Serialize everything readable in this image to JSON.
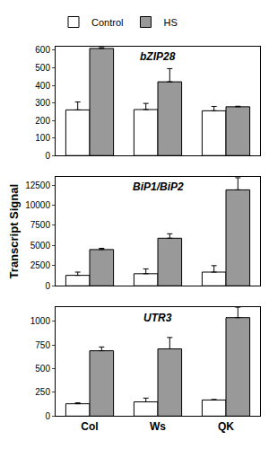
{
  "chart_data": [
    {
      "type": "bar",
      "title": "bZIP28",
      "legend": "top left",
      "tick_labels": "y",
      "categories": [
        "Col",
        "Ws",
        "QK"
      ],
      "series": [
        {
          "name": "Control",
          "color": "#ffffff",
          "values": [
            260,
            262,
            255
          ],
          "errors": [
            45,
            35,
            25
          ]
        },
        {
          "name": "HS",
          "color": "#999999",
          "values": [
            610,
            420,
            278
          ],
          "errors": [
            5,
            75,
            3
          ]
        }
      ],
      "ylim": [
        0,
        620
      ],
      "yticks": [
        0,
        100,
        200,
        300,
        400,
        500,
        600
      ]
    },
    {
      "type": "bar",
      "title": "BiP1/BiP2",
      "ylabel": "Transcript Signal",
      "tick_labels": "y",
      "categories": [
        "Col",
        "Ws",
        "QK"
      ],
      "series": [
        {
          "name": "Control",
          "color": "#ffffff",
          "values": [
            1300,
            1500,
            1700
          ],
          "errors": [
            400,
            600,
            800
          ]
        },
        {
          "name": "HS",
          "color": "#999999",
          "values": [
            4500,
            5900,
            11900
          ],
          "errors": [
            150,
            550,
            1500
          ]
        }
      ],
      "ylim": [
        0,
        13500
      ],
      "yticks": [
        0,
        2500,
        5000,
        7500,
        10000,
        12500
      ]
    },
    {
      "type": "bar",
      "title": "UTR3",
      "categories": [
        "Col",
        "Ws",
        "QK"
      ],
      "series": [
        {
          "name": "Control",
          "color": "#ffffff",
          "values": [
            130,
            150,
            170
          ],
          "errors": [
            10,
            40,
            5
          ]
        },
        {
          "name": "HS",
          "color": "#999999",
          "values": [
            690,
            710,
            1040
          ],
          "errors": [
            40,
            120,
            110
          ]
        }
      ],
      "ylim": [
        0,
        1150
      ],
      "yticks": [
        0,
        250,
        500,
        750,
        1000
      ]
    }
  ]
}
